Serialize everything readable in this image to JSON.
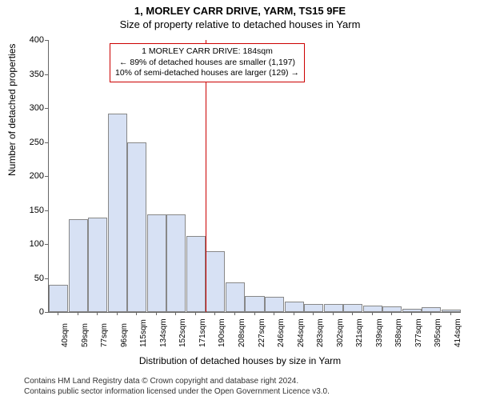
{
  "header": {
    "title": "1, MORLEY CARR DRIVE, YARM, TS15 9FE",
    "subtitle": "Size of property relative to detached houses in Yarm"
  },
  "chart": {
    "type": "histogram",
    "ylim": [
      0,
      400
    ],
    "ytick_step": 50,
    "y_label": "Number of detached properties",
    "x_label": "Distribution of detached houses by size in Yarm",
    "bar_color": "#d7e1f4",
    "bar_border": "#888888",
    "background": "#ffffff",
    "categories": [
      "40sqm",
      "59sqm",
      "77sqm",
      "96sqm",
      "115sqm",
      "134sqm",
      "152sqm",
      "171sqm",
      "190sqm",
      "208sqm",
      "227sqm",
      "246sqm",
      "264sqm",
      "283sqm",
      "302sqm",
      "321sqm",
      "339sqm",
      "358sqm",
      "377sqm",
      "395sqm",
      "414sqm"
    ],
    "values": [
      40,
      137,
      139,
      292,
      249,
      143,
      143,
      112,
      89,
      44,
      24,
      22,
      15,
      12,
      12,
      12,
      10,
      8,
      5,
      7,
      4
    ],
    "marker": {
      "position_index": 8,
      "color": "#cc0000",
      "box_lines": [
        "1 MORLEY CARR DRIVE: 184sqm",
        "← 89% of detached houses are smaller (1,197)",
        "10% of semi-detached houses are larger (129) →"
      ]
    }
  },
  "footer": {
    "line1": "Contains HM Land Registry data © Crown copyright and database right 2024.",
    "line2": "Contains public sector information licensed under the Open Government Licence v3.0."
  }
}
